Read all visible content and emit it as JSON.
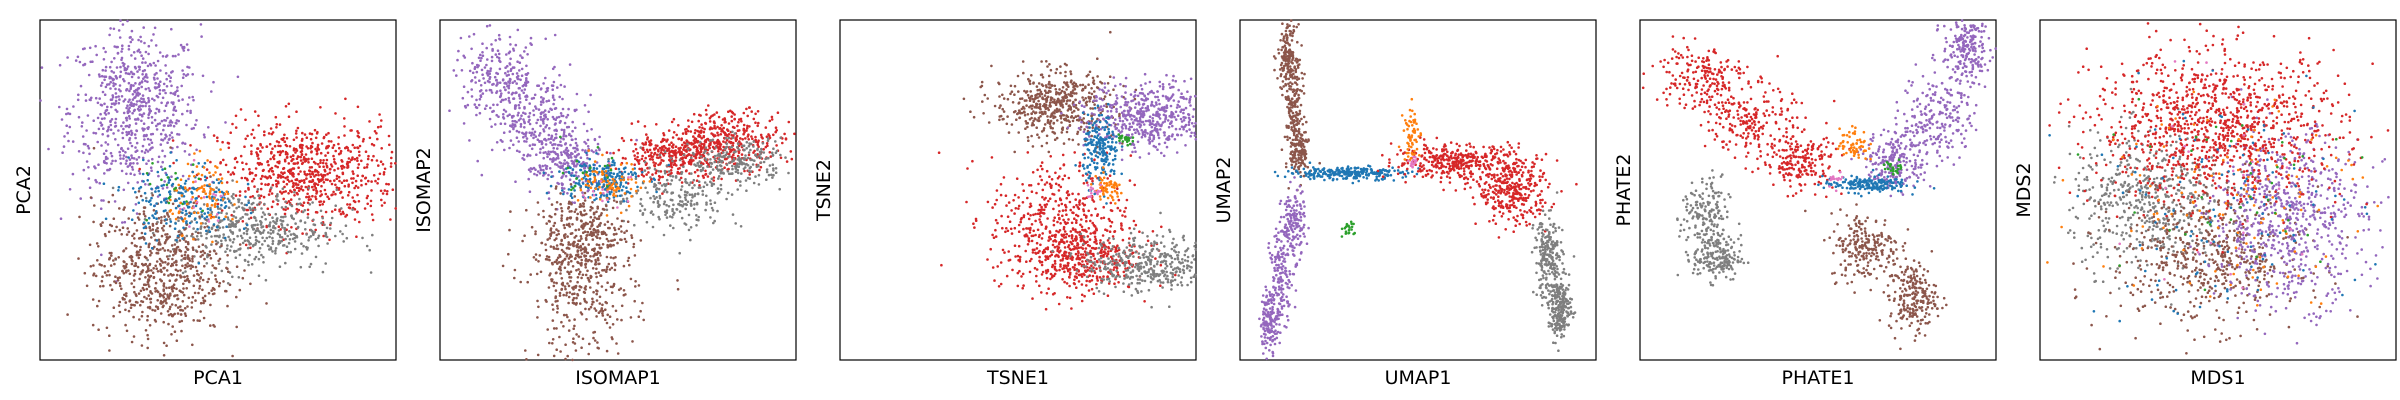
{
  "figure": {
    "panel_count": 6,
    "palette": {
      "blue": "#1f77b4",
      "orange": "#ff7f0e",
      "green": "#2ca02c",
      "red": "#d62728",
      "purple": "#9467bd",
      "brown": "#8c564b",
      "pink": "#e377c2",
      "gray": "#7f7f7f"
    }
  },
  "chart_data": [
    {
      "type": "scatter",
      "title": "",
      "xlabel": "PCA1",
      "ylabel": "PCA2",
      "xlim": [
        -3,
        3
      ],
      "ylim": [
        -3,
        3
      ],
      "ticks": "none",
      "grid": false,
      "series": [
        {
          "color": "#9467bd",
          "n": 700,
          "clusters": [
            {
              "cx": -1.4,
              "cy": 1.4,
              "sx": 0.55,
              "sy": 0.75
            }
          ]
        },
        {
          "color": "#d62728",
          "n": 750,
          "clusters": [
            {
              "cx": 1.5,
              "cy": 0.3,
              "sx": 0.75,
              "sy": 0.45
            }
          ]
        },
        {
          "color": "#7f7f7f",
          "n": 450,
          "clusters": [
            {
              "cx": 0.6,
              "cy": -0.7,
              "sx": 0.7,
              "sy": 0.35
            }
          ]
        },
        {
          "color": "#8c564b",
          "n": 650,
          "clusters": [
            {
              "cx": -1.0,
              "cy": -1.4,
              "sx": 0.55,
              "sy": 0.6
            }
          ]
        },
        {
          "color": "#1f77b4",
          "n": 200,
          "clusters": [
            {
              "cx": -0.6,
              "cy": -0.2,
              "sx": 0.45,
              "sy": 0.35
            }
          ]
        },
        {
          "color": "#ff7f0e",
          "n": 90,
          "clusters": [
            {
              "cx": -0.2,
              "cy": -0.1,
              "sx": 0.3,
              "sy": 0.3
            }
          ]
        },
        {
          "color": "#2ca02c",
          "n": 20,
          "clusters": [
            {
              "cx": -0.7,
              "cy": 0.0,
              "sx": 0.3,
              "sy": 0.3
            }
          ]
        },
        {
          "color": "#e377c2",
          "n": 15,
          "clusters": [
            {
              "cx": -0.3,
              "cy": -0.3,
              "sx": 0.25,
              "sy": 0.25
            }
          ]
        }
      ]
    },
    {
      "type": "scatter",
      "title": "",
      "xlabel": "ISOMAP1",
      "ylabel": "ISOMAP2",
      "xlim": [
        -3,
        3
      ],
      "ylim": [
        -3,
        3
      ],
      "ticks": "none",
      "grid": false,
      "series": [
        {
          "color": "#9467bd",
          "n": 700,
          "clusters": [
            {
              "cx": -2.0,
              "cy": 2.0,
              "sx": 0.4,
              "sy": 0.35
            },
            {
              "cx": -1.4,
              "cy": 1.2,
              "sx": 0.4,
              "sy": 0.35
            },
            {
              "cx": -0.9,
              "cy": 0.5,
              "sx": 0.3,
              "sy": 0.3
            }
          ]
        },
        {
          "color": "#d62728",
          "n": 700,
          "clusters": [
            {
              "cx": 1.9,
              "cy": 0.9,
              "sx": 0.45,
              "sy": 0.25
            },
            {
              "cx": 0.9,
              "cy": 0.6,
              "sx": 0.45,
              "sy": 0.2
            }
          ]
        },
        {
          "color": "#7f7f7f",
          "n": 450,
          "clusters": [
            {
              "cx": 1.0,
              "cy": -0.1,
              "sx": 0.55,
              "sy": 0.3
            },
            {
              "cx": 2.0,
              "cy": 0.5,
              "sx": 0.4,
              "sy": 0.2
            }
          ]
        },
        {
          "color": "#8c564b",
          "n": 650,
          "clusters": [
            {
              "cx": -0.6,
              "cy": -1.8,
              "sx": 0.45,
              "sy": 0.6
            },
            {
              "cx": -0.6,
              "cy": -0.8,
              "sx": 0.4,
              "sy": 0.35
            }
          ]
        },
        {
          "color": "#1f77b4",
          "n": 200,
          "clusters": [
            {
              "cx": -0.3,
              "cy": 0.2,
              "sx": 0.35,
              "sy": 0.2
            }
          ]
        },
        {
          "color": "#ff7f0e",
          "n": 80,
          "clusters": [
            {
              "cx": -0.1,
              "cy": 0.1,
              "sx": 0.25,
              "sy": 0.2
            }
          ]
        },
        {
          "color": "#2ca02c",
          "n": 20,
          "clusters": [
            {
              "cx": -0.5,
              "cy": 0.3,
              "sx": 0.2,
              "sy": 0.2
            }
          ]
        },
        {
          "color": "#e377c2",
          "n": 15,
          "clusters": [
            {
              "cx": -0.2,
              "cy": 0.0,
              "sx": 0.2,
              "sy": 0.2
            }
          ]
        }
      ]
    },
    {
      "type": "scatter",
      "title": "",
      "xlabel": "TSNE1",
      "ylabel": "TSNE2",
      "xlim": [
        -3,
        3
      ],
      "ylim": [
        -3,
        3
      ],
      "ticks": "none",
      "grid": false,
      "series": [
        {
          "color": "#8c564b",
          "n": 500,
          "clusters": [
            {
              "cx": 0.6,
              "cy": 1.5,
              "sx": 0.5,
              "sy": 0.3
            }
          ]
        },
        {
          "color": "#9467bd",
          "n": 500,
          "clusters": [
            {
              "cx": 2.2,
              "cy": 1.3,
              "sx": 0.5,
              "sy": 0.3
            }
          ]
        },
        {
          "color": "#d62728",
          "n": 800,
          "clusters": [
            {
              "cx": 0.7,
              "cy": -0.5,
              "sx": 0.6,
              "sy": 0.55
            },
            {
              "cx": 1.0,
              "cy": -1.2,
              "sx": 0.5,
              "sy": 0.3
            }
          ]
        },
        {
          "color": "#7f7f7f",
          "n": 400,
          "clusters": [
            {
              "cx": 2.2,
              "cy": -1.3,
              "sx": 0.55,
              "sy": 0.25
            }
          ]
        },
        {
          "color": "#1f77b4",
          "n": 200,
          "clusters": [
            {
              "cx": 1.4,
              "cy": 0.7,
              "sx": 0.15,
              "sy": 0.3
            }
          ]
        },
        {
          "color": "#ff7f0e",
          "n": 60,
          "clusters": [
            {
              "cx": 1.5,
              "cy": 0.0,
              "sx": 0.15,
              "sy": 0.12
            }
          ]
        },
        {
          "color": "#2ca02c",
          "n": 25,
          "clusters": [
            {
              "cx": 1.8,
              "cy": 0.9,
              "sx": 0.06,
              "sy": 0.06
            }
          ]
        },
        {
          "color": "#e377c2",
          "n": 15,
          "clusters": [
            {
              "cx": 1.3,
              "cy": 0.0,
              "sx": 0.08,
              "sy": 0.08
            }
          ]
        }
      ]
    },
    {
      "type": "scatter",
      "title": "",
      "xlabel": "UMAP1",
      "ylabel": "UMAP2",
      "xlim": [
        -3,
        3
      ],
      "ylim": [
        -3,
        3
      ],
      "ticks": "none",
      "grid": false,
      "series": [
        {
          "color": "#8c564b",
          "n": 450,
          "clusters": [
            {
              "cx": -2.2,
              "cy": 2.4,
              "sx": 0.08,
              "sy": 0.25
            },
            {
              "cx": -2.1,
              "cy": 1.5,
              "sx": 0.08,
              "sy": 0.4
            },
            {
              "cx": -2.0,
              "cy": 0.7,
              "sx": 0.08,
              "sy": 0.25
            }
          ]
        },
        {
          "color": "#9467bd",
          "n": 450,
          "clusters": [
            {
              "cx": -2.1,
              "cy": -0.6,
              "sx": 0.1,
              "sy": 0.3
            },
            {
              "cx": -2.3,
              "cy": -1.5,
              "sx": 0.1,
              "sy": 0.4
            },
            {
              "cx": -2.5,
              "cy": -2.3,
              "sx": 0.08,
              "sy": 0.25
            }
          ]
        },
        {
          "color": "#1f77b4",
          "n": 250,
          "clusters": [
            {
              "cx": -1.2,
              "cy": 0.3,
              "sx": 0.5,
              "sy": 0.06
            }
          ]
        },
        {
          "color": "#d62728",
          "n": 700,
          "clusters": [
            {
              "cx": 0.6,
              "cy": 0.5,
              "sx": 0.5,
              "sy": 0.15
            },
            {
              "cx": 1.6,
              "cy": 0.0,
              "sx": 0.3,
              "sy": 0.3
            }
          ]
        },
        {
          "color": "#7f7f7f",
          "n": 450,
          "clusters": [
            {
              "cx": 2.2,
              "cy": -1.2,
              "sx": 0.12,
              "sy": 0.35
            },
            {
              "cx": 2.4,
              "cy": -2.1,
              "sx": 0.1,
              "sy": 0.25
            }
          ]
        },
        {
          "color": "#ff7f0e",
          "n": 60,
          "clusters": [
            {
              "cx": -0.1,
              "cy": 1.0,
              "sx": 0.07,
              "sy": 0.25
            }
          ]
        },
        {
          "color": "#2ca02c",
          "n": 20,
          "clusters": [
            {
              "cx": -1.2,
              "cy": -0.7,
              "sx": 0.06,
              "sy": 0.06
            }
          ]
        },
        {
          "color": "#e377c2",
          "n": 15,
          "clusters": [
            {
              "cx": -0.1,
              "cy": 0.5,
              "sx": 0.06,
              "sy": 0.06
            }
          ]
        }
      ]
    },
    {
      "type": "scatter",
      "title": "",
      "xlabel": "PHATE1",
      "ylabel": "PHATE2",
      "xlim": [
        -3,
        3
      ],
      "ylim": [
        -3,
        3
      ],
      "ticks": "none",
      "grid": false,
      "series": [
        {
          "color": "#d62728",
          "n": 600,
          "clusters": [
            {
              "cx": -2.0,
              "cy": 2.0,
              "sx": 0.4,
              "sy": 0.3
            },
            {
              "cx": -1.1,
              "cy": 1.2,
              "sx": 0.35,
              "sy": 0.3
            },
            {
              "cx": -0.3,
              "cy": 0.5,
              "sx": 0.3,
              "sy": 0.25
            }
          ]
        },
        {
          "color": "#9467bd",
          "n": 650,
          "clusters": [
            {
              "cx": 2.5,
              "cy": 2.5,
              "sx": 0.2,
              "sy": 0.3
            },
            {
              "cx": 2.0,
              "cy": 1.3,
              "sx": 0.3,
              "sy": 0.4
            },
            {
              "cx": 1.3,
              "cy": 0.5,
              "sx": 0.25,
              "sy": 0.25
            }
          ]
        },
        {
          "color": "#7f7f7f",
          "n": 350,
          "clusters": [
            {
              "cx": -1.9,
              "cy": -0.5,
              "sx": 0.2,
              "sy": 0.35
            },
            {
              "cx": -1.7,
              "cy": -1.2,
              "sx": 0.2,
              "sy": 0.2
            }
          ]
        },
        {
          "color": "#8c564b",
          "n": 450,
          "clusters": [
            {
              "cx": 0.8,
              "cy": -1.0,
              "sx": 0.3,
              "sy": 0.3
            },
            {
              "cx": 1.6,
              "cy": -1.9,
              "sx": 0.2,
              "sy": 0.3
            }
          ]
        },
        {
          "color": "#1f77b4",
          "n": 180,
          "clusters": [
            {
              "cx": 0.8,
              "cy": 0.1,
              "sx": 0.35,
              "sy": 0.07
            }
          ]
        },
        {
          "color": "#ff7f0e",
          "n": 60,
          "clusters": [
            {
              "cx": 0.6,
              "cy": 0.8,
              "sx": 0.12,
              "sy": 0.15
            }
          ]
        },
        {
          "color": "#2ca02c",
          "n": 25,
          "clusters": [
            {
              "cx": 1.3,
              "cy": 0.4,
              "sx": 0.1,
              "sy": 0.06
            }
          ]
        },
        {
          "color": "#e377c2",
          "n": 15,
          "clusters": [
            {
              "cx": 0.3,
              "cy": 0.2,
              "sx": 0.07,
              "sy": 0.07
            }
          ]
        }
      ]
    },
    {
      "type": "scatter",
      "title": "",
      "xlabel": "MDS1",
      "ylabel": "MDS2",
      "xlim": [
        -3,
        3
      ],
      "ylim": [
        -3,
        3
      ],
      "ticks": "none",
      "grid": false,
      "series": [
        {
          "color": "#7f7f7f",
          "n": 500,
          "clusters": [
            {
              "cx": -1.2,
              "cy": -0.2,
              "sx": 0.65,
              "sy": 0.6
            }
          ]
        },
        {
          "color": "#8c564b",
          "n": 550,
          "clusters": [
            {
              "cx": -0.2,
              "cy": -1.2,
              "sx": 0.8,
              "sy": 0.6
            }
          ]
        },
        {
          "color": "#9467bd",
          "n": 650,
          "clusters": [
            {
              "cx": 1.2,
              "cy": -0.5,
              "sx": 0.65,
              "sy": 0.75
            }
          ]
        },
        {
          "color": "#d62728",
          "n": 1100,
          "clusters": [
            {
              "cx": 0.0,
              "cy": 1.1,
              "sx": 1.05,
              "sy": 0.65
            }
          ]
        },
        {
          "color": "#1f77b4",
          "n": 120,
          "clusters": [
            {
              "cx": 0.0,
              "cy": -0.3,
              "sx": 1.2,
              "sy": 1.0
            }
          ]
        },
        {
          "color": "#ff7f0e",
          "n": 120,
          "clusters": [
            {
              "cx": 0.2,
              "cy": 0.0,
              "sx": 1.2,
              "sy": 1.0
            }
          ]
        },
        {
          "color": "#2ca02c",
          "n": 40,
          "clusters": [
            {
              "cx": 0.0,
              "cy": 0.0,
              "sx": 1.2,
              "sy": 1.0
            }
          ]
        },
        {
          "color": "#e377c2",
          "n": 25,
          "clusters": [
            {
              "cx": 0.0,
              "cy": 0.0,
              "sx": 1.1,
              "sy": 1.0
            }
          ]
        }
      ]
    }
  ]
}
